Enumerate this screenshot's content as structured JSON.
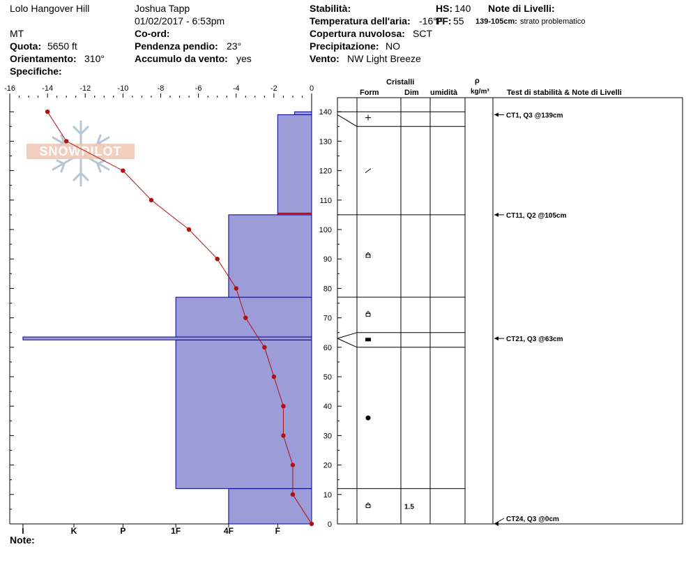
{
  "header": {
    "location": "Lolo Hangover Hill",
    "observer": "Joshua Tapp",
    "datetime": "01/02/2017 - 6:53pm",
    "state": "MT",
    "elevation_label": "Quota:",
    "elevation_value": "5650 ft",
    "aspect_label": "Orientamento:",
    "aspect_value": "310°",
    "specifics_label": "Specifiche:",
    "coord_label": "Co-ord:",
    "slope_label": "Pendenza pendio:",
    "slope_value": "23°",
    "wind_loading_label": "Accumulo da vento:",
    "wind_loading_value": "yes",
    "stability_label": "Stabilità:",
    "air_temp_label": "Temperatura dell'aria:",
    "air_temp_value": "-16°F",
    "cloud_label": "Copertura nuvolosa:",
    "cloud_value": "SCT",
    "precip_label": "Precipitazione:",
    "precip_value": "NO",
    "wind_label": "Vento:",
    "wind_value": "NW Light Breeze",
    "hs_label": "HS:",
    "hs_value": "140",
    "pf_label": "PF:",
    "pf_value": "55",
    "layer_notes_label": "Note di Livelli:",
    "layer_note_range": "139-105cm:",
    "layer_note_text": "strato problematico",
    "notes_label": "Note:"
  },
  "columns": {
    "crystals": "Cristalli",
    "form": "Form",
    "size": "Dim",
    "moisture": "umidità",
    "rho": "ρ",
    "density_unit": "kg/m³",
    "tests": "Test di stabilità & Note di Livelli"
  },
  "watermark": "SNOWPILOT",
  "colors": {
    "hardness_fill": "#9c9cd8",
    "hardness_edge": "#00008b",
    "temperature": "#b01010",
    "weak_layer": "#cc0000"
  },
  "chart_data": {
    "type": "line",
    "title": "",
    "temperature_axis": {
      "ticks": [
        -16,
        -14,
        -12,
        -10,
        -8,
        -6,
        -4,
        -2,
        0
      ],
      "range": [
        -16,
        0
      ]
    },
    "depth_axis": {
      "ticks": [
        0,
        10,
        20,
        30,
        40,
        50,
        60,
        70,
        80,
        90,
        100,
        110,
        120,
        130,
        140
      ],
      "range": [
        0,
        145
      ]
    },
    "hardness_axis": {
      "labels": [
        "I",
        "K",
        "P",
        "1F",
        "4F",
        "F"
      ],
      "scale_points": [
        15.3,
        12.6,
        10.0,
        7.2,
        4.4,
        1.8
      ]
    },
    "temperature_profile": {
      "depth": [
        140,
        130,
        120,
        110,
        100,
        90,
        80,
        70,
        60,
        50,
        40,
        30,
        20,
        10,
        0
      ],
      "temp": [
        -14,
        -13,
        -10,
        -8.5,
        -6.5,
        -5,
        -4,
        -3.5,
        -2.5,
        -2,
        -1.5,
        -1.5,
        -1,
        -1,
        0
      ]
    },
    "hardness_layers": [
      {
        "bottom": 0,
        "top": 12,
        "hardness": 4.4
      },
      {
        "bottom": 12,
        "top": 62.5,
        "hardness": 7.2
      },
      {
        "bottom": 62.5,
        "top": 63.5,
        "hardness": 15.3
      },
      {
        "bottom": 63.5,
        "top": 77,
        "hardness": 7.2
      },
      {
        "bottom": 77,
        "top": 105,
        "hardness": 4.4
      },
      {
        "bottom": 105,
        "top": 139,
        "hardness": 1.8
      },
      {
        "bottom": 139,
        "top": 140,
        "hardness": 0.9
      }
    ],
    "weak_layer_depth": 105,
    "layer_boundaries": [
      0,
      12,
      60,
      65,
      77,
      105,
      135,
      140
    ],
    "crystal_forms": [
      {
        "depth": 138,
        "form": "plus"
      },
      {
        "depth": 120,
        "form": "slash"
      },
      {
        "depth": 91,
        "form": "facet"
      },
      {
        "depth": 71,
        "form": "facet"
      },
      {
        "depth": 62.5,
        "form": "crust"
      },
      {
        "depth": 36,
        "form": "round"
      },
      {
        "depth": 6,
        "form": "facet",
        "size": "1.5"
      }
    ],
    "stability_tests": [
      {
        "depth": 139,
        "label": "CT1, Q3 @139cm"
      },
      {
        "depth": 105,
        "label": "CT11, Q2 @105cm"
      },
      {
        "depth": 63,
        "label": "CT21, Q3 @63cm"
      },
      {
        "depth": 0,
        "label": "CT24, Q3 @0cm"
      }
    ]
  }
}
